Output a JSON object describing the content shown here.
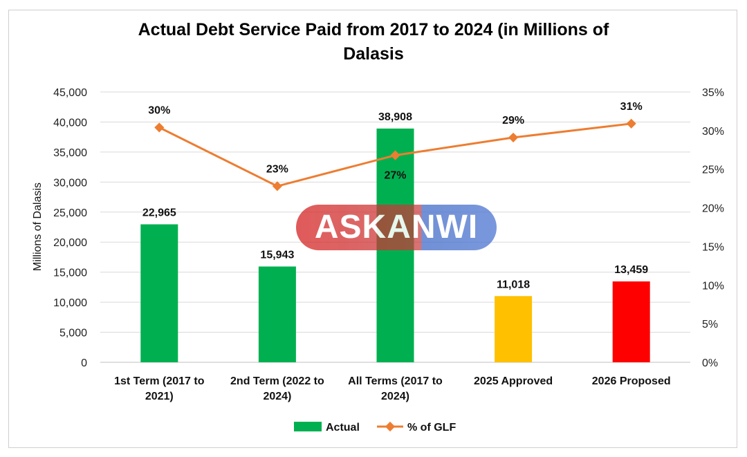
{
  "chart_data": {
    "type": "bar",
    "title_lines": [
      "Actual Debt Service Paid from 2017 to 2024 (in Millions of",
      "Dalasis"
    ],
    "categories": [
      [
        "1st Term (2017 to",
        "2021)"
      ],
      [
        "2nd Term (2022 to",
        "2024)"
      ],
      [
        "All Terms (2017 to",
        "2024)"
      ],
      [
        "2025 Approved"
      ],
      [
        "2026 Proposed"
      ]
    ],
    "ylabel": "Millions of Dalasis",
    "ylim": [
      0,
      45000
    ],
    "y_ticks": [
      "0",
      "5,000",
      "10,000",
      "15,000",
      "20,000",
      "25,000",
      "30,000",
      "35,000",
      "40,000",
      "45,000"
    ],
    "y2lim": [
      0,
      35
    ],
    "y2_ticks": [
      "0%",
      "5%",
      "10%",
      "15%",
      "20%",
      "25%",
      "30%",
      "35%"
    ],
    "series": [
      {
        "name": "Actual",
        "kind": "bar",
        "values": [
          22965,
          15943,
          38908,
          11018,
          13459
        ],
        "labels": [
          "22,965",
          "15,943",
          "38,908",
          "11,018",
          "13,459"
        ],
        "colors": [
          "#00b050",
          "#00b050",
          "#00b050",
          "#ffc000",
          "#ff0000"
        ]
      },
      {
        "name": "% of GLF",
        "kind": "line",
        "axis": "secondary",
        "values": [
          30.4,
          22.8,
          26.8,
          29.1,
          30.9
        ],
        "labels": [
          "30%",
          "23%",
          "27%",
          "29%",
          "31%"
        ],
        "color": "#ed7d31"
      }
    ],
    "legend_position": "bottom",
    "legend": {
      "bar_color": "#00b050",
      "line_color": "#ed7d31"
    },
    "grid": "horizontal"
  },
  "watermark": "ASKANWI"
}
